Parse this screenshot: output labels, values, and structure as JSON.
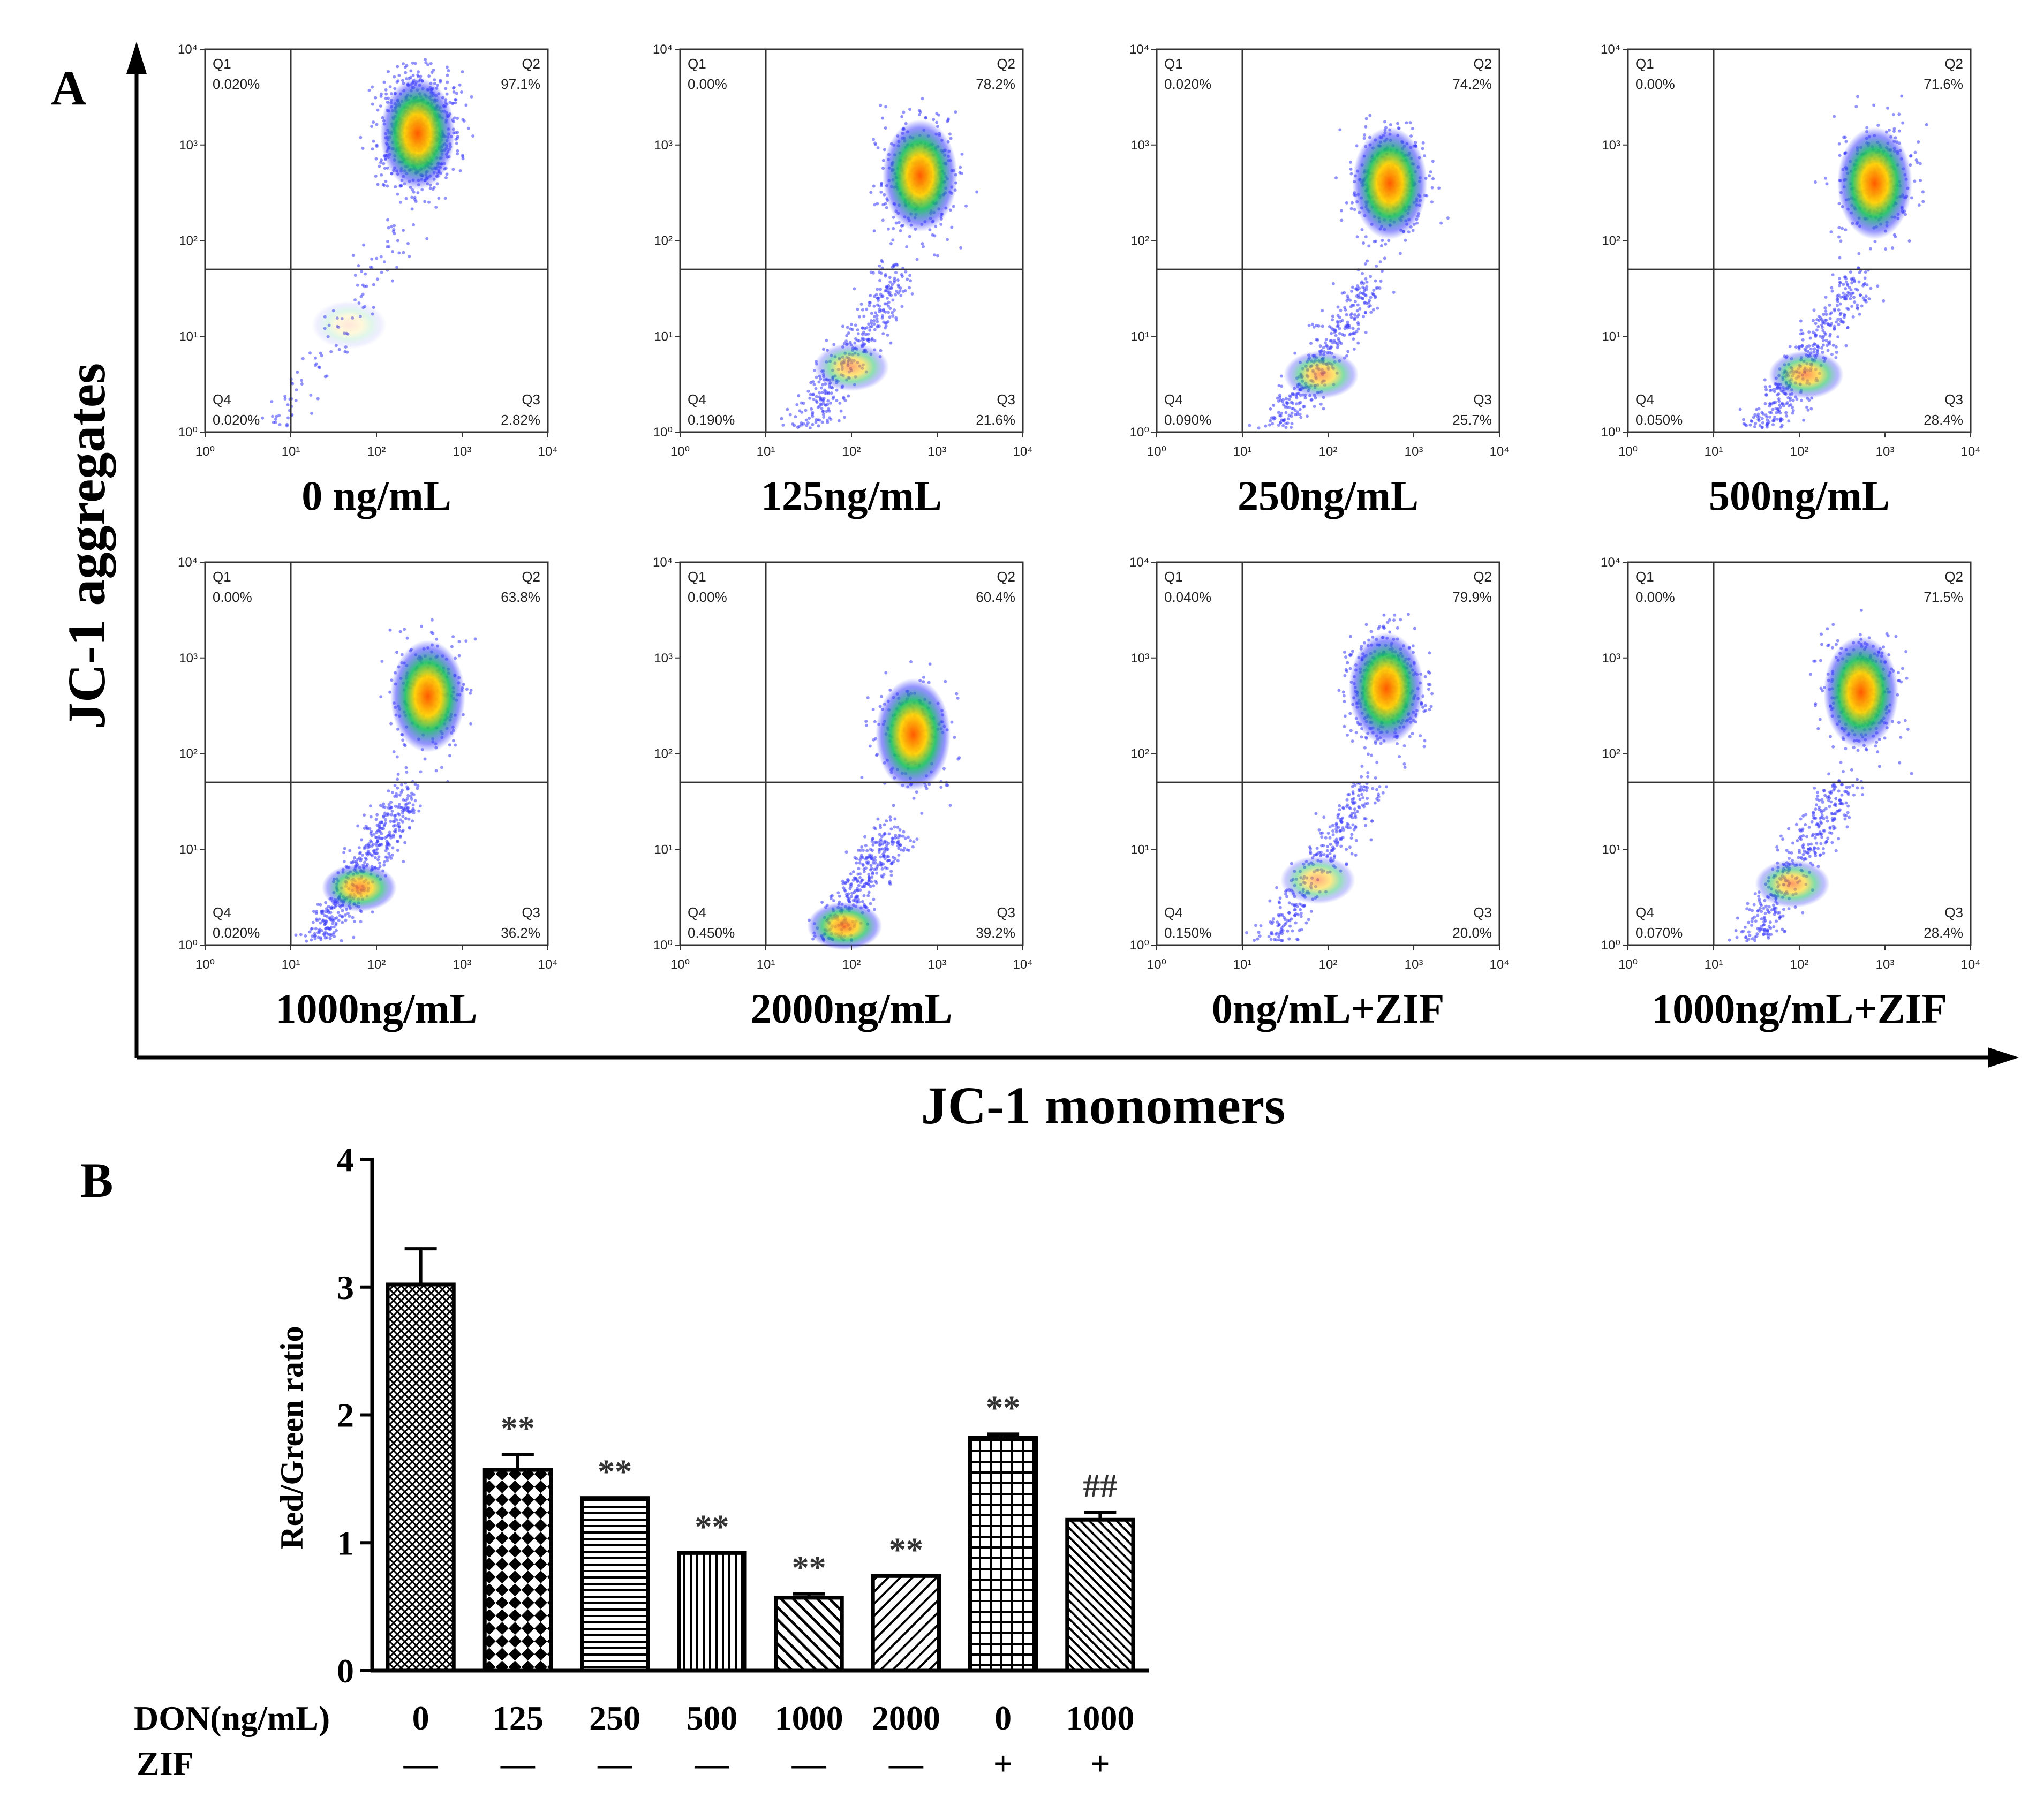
{
  "panel_a": {
    "letter": "A",
    "ylabel": "JC-1 aggregates",
    "xlabel": "JC-1 monomers",
    "tick_labels": [
      "10⁰",
      "10¹",
      "10²",
      "10³",
      "10⁴"
    ],
    "colors": {
      "density_low": "#3b3bff",
      "density_mid": "#18c060",
      "density_high": "#ff5a00"
    },
    "plots": [
      {
        "caption": "0 ng/mL",
        "q1": [
          "Q1",
          "0.020%"
        ],
        "q2": [
          "Q2",
          "97.1%"
        ],
        "q3": [
          "Q3",
          "2.82%"
        ],
        "q4": [
          "Q4",
          "0.020%"
        ]
      },
      {
        "caption": "125ng/mL",
        "q1": [
          "Q1",
          "0.00%"
        ],
        "q2": [
          "Q2",
          "78.2%"
        ],
        "q3": [
          "Q3",
          "21.6%"
        ],
        "q4": [
          "Q4",
          "0.190%"
        ]
      },
      {
        "caption": "250ng/mL",
        "q1": [
          "Q1",
          "0.020%"
        ],
        "q2": [
          "Q2",
          "74.2%"
        ],
        "q3": [
          "Q3",
          "25.7%"
        ],
        "q4": [
          "Q4",
          "0.090%"
        ]
      },
      {
        "caption": "500ng/mL",
        "q1": [
          "Q1",
          "0.00%"
        ],
        "q2": [
          "Q2",
          "71.6%"
        ],
        "q3": [
          "Q3",
          "28.4%"
        ],
        "q4": [
          "Q4",
          "0.050%"
        ]
      },
      {
        "caption": "1000ng/mL",
        "q1": [
          "Q1",
          "0.00%"
        ],
        "q2": [
          "Q2",
          "63.8%"
        ],
        "q3": [
          "Q3",
          "36.2%"
        ],
        "q4": [
          "Q4",
          "0.020%"
        ]
      },
      {
        "caption": "2000ng/mL",
        "q1": [
          "Q1",
          "0.00%"
        ],
        "q2": [
          "Q2",
          "60.4%"
        ],
        "q3": [
          "Q3",
          "39.2%"
        ],
        "q4": [
          "Q4",
          "0.450%"
        ]
      },
      {
        "caption": "0ng/mL+ZIF",
        "q1": [
          "Q1",
          "0.040%"
        ],
        "q2": [
          "Q2",
          "79.9%"
        ],
        "q3": [
          "Q3",
          "20.0%"
        ],
        "q4": [
          "Q4",
          "0.150%"
        ]
      },
      {
        "caption": "1000ng/mL+ZIF",
        "q1": [
          "Q1",
          "0.00%"
        ],
        "q2": [
          "Q2",
          "71.5%"
        ],
        "q3": [
          "Q3",
          "28.4%"
        ],
        "q4": [
          "Q4",
          "0.070%"
        ]
      }
    ]
  },
  "chart_data": {
    "type": "bar",
    "letter": "B",
    "ylabel": "Red/Green ratio",
    "ylim": [
      0,
      4
    ],
    "yticks": [
      "0",
      "1",
      "2",
      "3",
      "4"
    ],
    "row_labels": [
      "DON(ng/mL)",
      "ZIF"
    ],
    "categories": [
      "0",
      "125",
      "250",
      "500",
      "1000",
      "2000",
      "0",
      "1000"
    ],
    "zif": [
      "—",
      "—",
      "—",
      "—",
      "—",
      "—",
      "+",
      "+"
    ],
    "values": [
      3.02,
      1.57,
      1.35,
      0.92,
      0.57,
      0.74,
      1.82,
      1.18
    ],
    "errors": [
      0.28,
      0.12,
      0.0,
      0.0,
      0.03,
      0.0,
      0.03,
      0.06
    ],
    "significance": [
      "",
      "**",
      "**",
      "**",
      "**",
      "**",
      "**",
      "##"
    ],
    "patterns": [
      "crosshatch",
      "checker",
      "horizontal",
      "vertical",
      "diagonal-up",
      "diagonal-down",
      "grid",
      "diagonal-up-dense"
    ]
  }
}
